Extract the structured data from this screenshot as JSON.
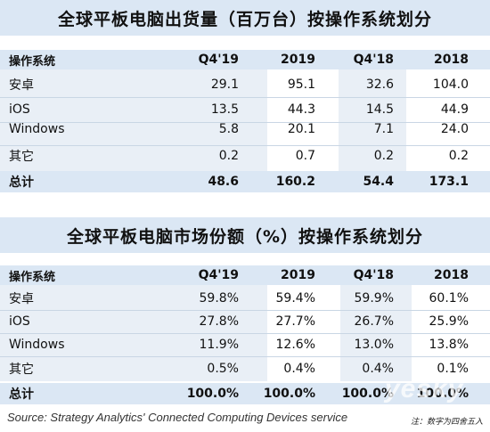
{
  "table1": {
    "title": "全球平板电脑出货量（百万台）按操作系统划分",
    "headers": [
      "操作系统",
      "Q4'19",
      "2019",
      "Q4'18",
      "2018"
    ],
    "rows": [
      [
        "安卓",
        "29.1",
        "95.1",
        "32.6",
        "104.0"
      ],
      [
        "iOS",
        "13.5",
        "44.3",
        "14.5",
        "44.9"
      ],
      [
        "Windows",
        "5.8",
        "20.1",
        "7.1",
        "24.0"
      ],
      [
        "其它",
        "0.2",
        "0.7",
        "0.2",
        "0.2"
      ]
    ],
    "total": [
      "总计",
      "48.6",
      "160.2",
      "54.4",
      "173.1"
    ]
  },
  "table2": {
    "title": "全球平板电脑市场份额（%）按操作系统划分",
    "headers": [
      "操作系统",
      "Q4'19",
      "2019",
      "Q4'18",
      "2018"
    ],
    "rows": [
      [
        "安卓",
        "59.8%",
        "59.4%",
        "59.9%",
        "60.1%"
      ],
      [
        "iOS",
        "27.8%",
        "27.7%",
        "26.7%",
        "25.9%"
      ],
      [
        "Windows",
        "11.9%",
        "12.6%",
        "13.0%",
        "13.8%"
      ],
      [
        "其它",
        "0.5%",
        "0.4%",
        "0.4%",
        "0.1%"
      ]
    ],
    "total": [
      "总计",
      "100.0%",
      "100.0%",
      "100.0%",
      "100.0%"
    ]
  },
  "footer": {
    "source": "Source: Strategy Analytics' Connected Computing Devices service",
    "note": "注：数字为四舍五入"
  },
  "watermark": "yesky",
  "colors": {
    "header_bg": "#dbe7f4",
    "row_bg": "#e9eff6"
  }
}
